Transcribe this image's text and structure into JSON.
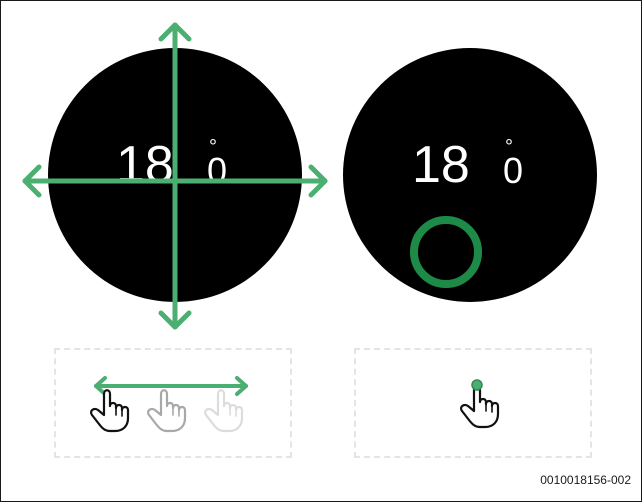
{
  "colors": {
    "accent": "#4caf72",
    "dial": "#000000",
    "text": "#ffffff"
  },
  "dial_left": {
    "temperature": "18",
    "degree": "°",
    "unit": "0"
  },
  "dial_right": {
    "temperature": "18",
    "degree": "°",
    "unit": "0"
  },
  "icons": {
    "swipe_gesture": [
      "hand-pointer-icon",
      "hand-pointer-icon",
      "hand-pointer-icon"
    ],
    "tap_gesture": "hand-pointer-icon",
    "move_arrows": "four-way-arrow-icon",
    "press_indicator": "ring-icon"
  },
  "figure_code": "0010018156-002"
}
